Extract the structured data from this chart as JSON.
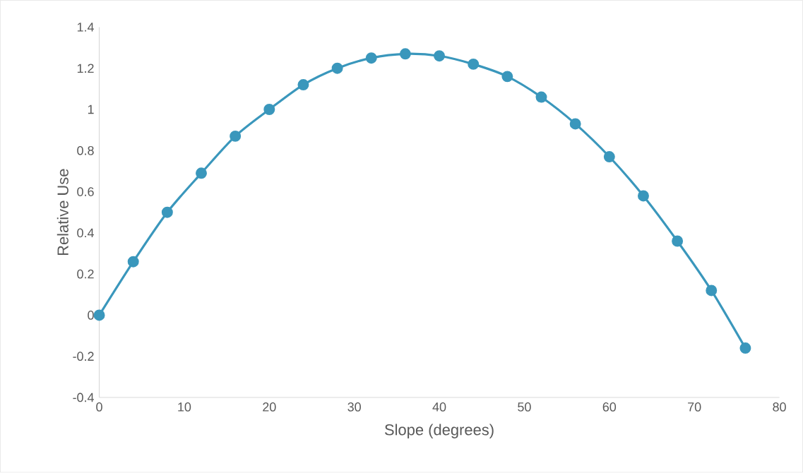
{
  "chart_data": {
    "type": "line",
    "xlabel": "Slope (degrees)",
    "ylabel": "Relative Use",
    "x": [
      0,
      4,
      8,
      12,
      16,
      20,
      24,
      28,
      32,
      36,
      40,
      44,
      48,
      52,
      56,
      60,
      64,
      68,
      72,
      76
    ],
    "series": [
      {
        "color": "#3a97bc",
        "values": [
          0,
          0.26,
          0.5,
          0.69,
          0.87,
          1.0,
          1.12,
          1.2,
          1.25,
          1.27,
          1.26,
          1.22,
          1.16,
          1.06,
          0.93,
          0.77,
          0.58,
          0.36,
          0.12,
          -0.16
        ]
      }
    ],
    "xlim": [
      0,
      80
    ],
    "xticks": [
      0,
      10,
      20,
      30,
      40,
      50,
      60,
      70,
      80
    ],
    "ylim": [
      -0.4,
      1.4
    ],
    "yticks": [
      -0.4,
      -0.2,
      0,
      0.2,
      0.4,
      0.6,
      0.8,
      1,
      1.2,
      1.4
    ],
    "marker": "circle",
    "line_style": "solid"
  }
}
